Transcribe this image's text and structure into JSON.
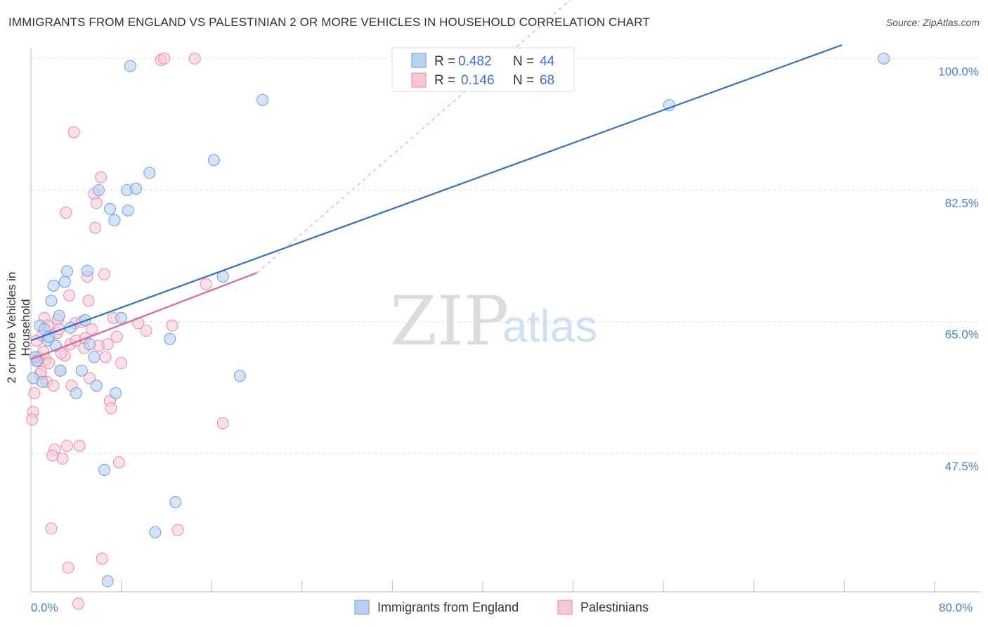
{
  "title": "IMMIGRANTS FROM ENGLAND VS PALESTINIAN 2 OR MORE VEHICLES IN HOUSEHOLD CORRELATION CHART",
  "source": "Source: ZipAtlas.com",
  "watermark": {
    "zip": "ZIP",
    "atlas": "atlas"
  },
  "colors": {
    "england_fill": "#b8d0f2",
    "england_stroke": "#6f9ee0",
    "england_line": "#2f6fcf",
    "pal_fill": "#f8c6d4",
    "pal_stroke": "#e88aa6",
    "pal_line": "#e0648c",
    "grid": "#dddddd",
    "tick_label": "#4a7fd0"
  },
  "legend": {
    "rows": [
      {
        "r_label": "R = ",
        "r_value": "0.482",
        "n_label": "N = ",
        "n_value": "44"
      },
      {
        "r_label": "R = ",
        "r_value": "0.146",
        "n_label": "N = ",
        "n_value": "68"
      }
    ]
  },
  "bottom_legend": [
    "Immigrants from England",
    "Palestinians"
  ],
  "chart_data": {
    "type": "scatter",
    "title": "IMMIGRANTS FROM ENGLAND VS PALESTINIAN 2 OR MORE VEHICLES IN HOUSEHOLD CORRELATION CHART",
    "xlabel": "",
    "ylabel": "2 or more Vehicles in Household",
    "xlim": [
      0,
      80
    ],
    "ylim": [
      30.2,
      101.8
    ],
    "x_tick_labels": [
      "0.0%",
      "80.0%"
    ],
    "y_ticks": [
      47.5,
      65.0,
      82.5,
      100.0
    ],
    "y_tick_labels": [
      "47.5%",
      "65.0%",
      "82.5%",
      "100.0%"
    ],
    "x_tick_marks": [
      0,
      8,
      16,
      24,
      32,
      40,
      48,
      56,
      64,
      72,
      80
    ],
    "grid": true,
    "series": [
      {
        "name": "Immigrants from England",
        "R": 0.482,
        "N": 44,
        "trend": {
          "x0": 0,
          "y0": 62.5,
          "x1": 71.8,
          "y1": 101.8,
          "dashed_extension_to_x": 72
        },
        "points": [
          [
            0.4,
            60.3
          ],
          [
            0.5,
            59.8
          ],
          [
            0.8,
            64.5
          ],
          [
            1.0,
            57.0
          ],
          [
            1.2,
            64.0
          ],
          [
            1.5,
            62.5
          ],
          [
            1.6,
            63.0
          ],
          [
            1.8,
            67.8
          ],
          [
            2.0,
            69.8
          ],
          [
            2.2,
            61.8
          ],
          [
            2.5,
            65.8
          ],
          [
            2.6,
            58.5
          ],
          [
            3.0,
            70.3
          ],
          [
            3.2,
            71.7
          ],
          [
            3.5,
            64.2
          ],
          [
            4.0,
            55.5
          ],
          [
            4.5,
            58.5
          ],
          [
            4.8,
            65.2
          ],
          [
            5.0,
            71.8
          ],
          [
            5.2,
            62.0
          ],
          [
            5.6,
            60.3
          ],
          [
            5.8,
            56.5
          ],
          [
            6.0,
            82.5
          ],
          [
            6.5,
            45.3
          ],
          [
            6.8,
            30.5
          ],
          [
            7.0,
            80.0
          ],
          [
            7.4,
            78.5
          ],
          [
            7.5,
            55.5
          ],
          [
            8.0,
            65.5
          ],
          [
            8.5,
            82.5
          ],
          [
            8.6,
            79.8
          ],
          [
            8.8,
            99.0
          ],
          [
            9.3,
            82.7
          ],
          [
            10.5,
            84.8
          ],
          [
            11.0,
            37.0
          ],
          [
            12.3,
            62.7
          ],
          [
            12.8,
            41.0
          ],
          [
            16.2,
            86.5
          ],
          [
            17.0,
            71.0
          ],
          [
            18.5,
            57.8
          ],
          [
            20.5,
            94.5
          ],
          [
            56.5,
            93.8
          ],
          [
            75.5,
            100.0
          ],
          [
            0.2,
            57.5
          ]
        ]
      },
      {
        "name": "Palestinians",
        "R": 0.146,
        "N": 68,
        "trend": {
          "x0": 0,
          "y0": 60.0,
          "x1": 20.0,
          "y1": 71.5
        },
        "points": [
          [
            0.2,
            53.0
          ],
          [
            0.3,
            55.5
          ],
          [
            0.5,
            62.5
          ],
          [
            0.7,
            60.3
          ],
          [
            0.8,
            58.0
          ],
          [
            1.0,
            63.2
          ],
          [
            1.1,
            61.0
          ],
          [
            1.2,
            65.5
          ],
          [
            1.3,
            60.0
          ],
          [
            1.4,
            57.0
          ],
          [
            1.5,
            64.5
          ],
          [
            1.6,
            59.5
          ],
          [
            1.8,
            37.5
          ],
          [
            2.0,
            56.5
          ],
          [
            2.1,
            48.0
          ],
          [
            2.3,
            63.5
          ],
          [
            2.4,
            65.3
          ],
          [
            2.5,
            64.0
          ],
          [
            2.6,
            58.5
          ],
          [
            2.8,
            46.8
          ],
          [
            3.0,
            60.5
          ],
          [
            3.1,
            79.5
          ],
          [
            3.2,
            48.5
          ],
          [
            3.4,
            68.5
          ],
          [
            3.5,
            62.0
          ],
          [
            3.6,
            56.5
          ],
          [
            3.8,
            90.2
          ],
          [
            3.9,
            64.8
          ],
          [
            4.0,
            62.5
          ],
          [
            4.2,
            27.5
          ],
          [
            4.3,
            48.5
          ],
          [
            4.5,
            65.0
          ],
          [
            4.7,
            61.5
          ],
          [
            4.8,
            62.8
          ],
          [
            5.0,
            71.0
          ],
          [
            5.1,
            67.8
          ],
          [
            5.2,
            57.5
          ],
          [
            5.4,
            64.0
          ],
          [
            5.6,
            82.0
          ],
          [
            5.7,
            77.5
          ],
          [
            5.8,
            80.8
          ],
          [
            6.0,
            61.8
          ],
          [
            6.2,
            84.2
          ],
          [
            6.3,
            33.5
          ],
          [
            6.5,
            71.3
          ],
          [
            6.6,
            60.3
          ],
          [
            6.8,
            62.0
          ],
          [
            7.0,
            54.5
          ],
          [
            7.1,
            53.5
          ],
          [
            7.3,
            65.5
          ],
          [
            7.6,
            63.0
          ],
          [
            7.8,
            46.3
          ],
          [
            8.0,
            59.5
          ],
          [
            9.5,
            64.8
          ],
          [
            10.2,
            63.8
          ],
          [
            11.5,
            99.8
          ],
          [
            11.8,
            100.0
          ],
          [
            12.5,
            64.5
          ],
          [
            13.0,
            37.3
          ],
          [
            14.5,
            100.0
          ],
          [
            15.5,
            70.0
          ],
          [
            17.0,
            51.5
          ],
          [
            3.3,
            32.3
          ],
          [
            1.9,
            47.2
          ],
          [
            2.7,
            60.8
          ],
          [
            0.6,
            59.8
          ],
          [
            0.9,
            58.3
          ],
          [
            0.1,
            52.0
          ]
        ]
      }
    ]
  }
}
